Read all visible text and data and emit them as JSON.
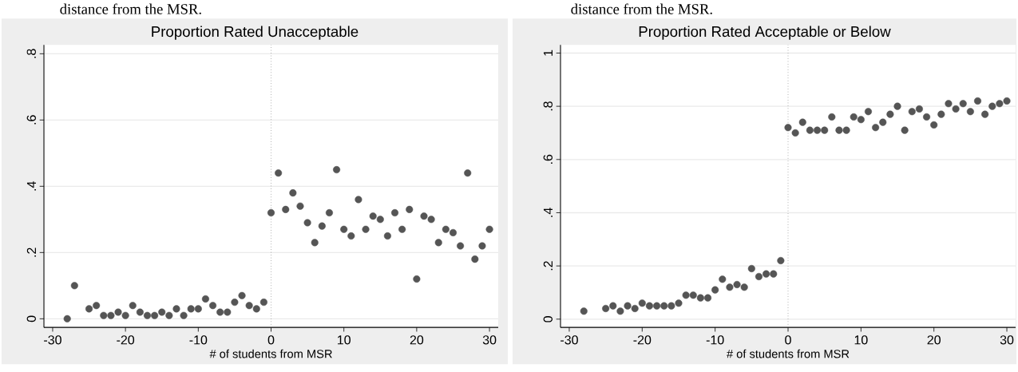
{
  "chart_data": [
    {
      "type": "scatter",
      "title": "Proportion Rated Unacceptable",
      "xlabel": "# of students from MSR",
      "annotations": [
        "distance from the MSR."
      ],
      "color": "#555555",
      "grid": "y",
      "x": [
        -28,
        -27,
        -25,
        -24,
        -23,
        -22,
        -21,
        -20,
        -19,
        -18,
        -17,
        -16,
        -15,
        -14,
        -13,
        -12,
        -11,
        -10,
        -9,
        -8,
        -7,
        -6,
        -5,
        -4,
        -3,
        -2,
        -1,
        0,
        1,
        2,
        3,
        4,
        5,
        6,
        7,
        8,
        9,
        10,
        11,
        12,
        13,
        14,
        15,
        16,
        17,
        18,
        19,
        20,
        21,
        22,
        23,
        24,
        25,
        26,
        27,
        28,
        29,
        30
      ],
      "values": [
        0.0,
        0.1,
        0.03,
        0.04,
        0.01,
        0.01,
        0.02,
        0.01,
        0.04,
        0.02,
        0.01,
        0.01,
        0.02,
        0.01,
        0.03,
        0.01,
        0.03,
        0.03,
        0.06,
        0.04,
        0.02,
        0.02,
        0.05,
        0.07,
        0.04,
        0.03,
        0.05,
        0.32,
        0.44,
        0.33,
        0.38,
        0.34,
        0.29,
        0.23,
        0.28,
        0.32,
        0.45,
        0.27,
        0.25,
        0.36,
        0.27,
        0.31,
        0.3,
        0.25,
        0.32,
        0.27,
        0.33,
        0.12,
        0.31,
        0.3,
        0.23,
        0.27,
        0.26,
        0.22,
        0.44,
        0.18,
        0.22,
        0.27
      ],
      "xlim": [
        -31.2,
        31.2
      ],
      "ylim": [
        -0.026,
        0.827
      ],
      "xticks": [
        -30,
        -20,
        -10,
        0,
        10,
        20,
        30
      ],
      "yticks": [
        0,
        {
          "value": 0.2,
          "label": ".2"
        },
        {
          "value": 0.4,
          "label": ".4"
        },
        {
          "value": 0.6,
          "label": ".6"
        },
        {
          "value": 0.8,
          "label": ".8"
        }
      ],
      "ref_lines": [
        {
          "axis": "x",
          "value": 0,
          "line_style": "dotted",
          "color": "#888888"
        }
      ]
    },
    {
      "type": "scatter",
      "title": "Proportion Rated Acceptable or Below",
      "xlabel": "# of students from MSR",
      "annotations": [
        "distance from the MSR."
      ],
      "color": "#555555",
      "grid": "y",
      "x": [
        -28,
        -25,
        -24,
        -23,
        -22,
        -21,
        -20,
        -19,
        -18,
        -17,
        -16,
        -15,
        -14,
        -13,
        -12,
        -11,
        -10,
        -9,
        -8,
        -7,
        -6,
        -5,
        -4,
        -3,
        -2,
        -1,
        0,
        1,
        2,
        3,
        4,
        5,
        6,
        7,
        8,
        9,
        10,
        11,
        12,
        13,
        14,
        15,
        16,
        17,
        18,
        19,
        20,
        21,
        22,
        23,
        24,
        25,
        26,
        27,
        28,
        29,
        30
      ],
      "values": [
        0.03,
        0.04,
        0.05,
        0.03,
        0.05,
        0.04,
        0.06,
        0.05,
        0.05,
        0.05,
        0.05,
        0.06,
        0.09,
        0.09,
        0.08,
        0.08,
        0.11,
        0.15,
        0.12,
        0.13,
        0.12,
        0.19,
        0.16,
        0.17,
        0.17,
        0.22,
        0.72,
        0.7,
        0.74,
        0.71,
        0.71,
        0.71,
        0.76,
        0.71,
        0.71,
        0.76,
        0.75,
        0.78,
        0.72,
        0.74,
        0.77,
        0.8,
        0.71,
        0.78,
        0.79,
        0.76,
        0.73,
        0.77,
        0.81,
        0.79,
        0.81,
        0.78,
        0.82,
        0.77,
        0.8,
        0.81,
        0.82
      ],
      "xlim": [
        -31.2,
        31.2
      ],
      "ylim": [
        -0.031,
        1.031
      ],
      "xticks": [
        -30,
        -20,
        -10,
        0,
        10,
        20,
        30
      ],
      "yticks": [
        0,
        {
          "value": 0.2,
          "label": ".2"
        },
        {
          "value": 0.4,
          "label": ".4"
        },
        {
          "value": 0.6,
          "label": ".6"
        },
        {
          "value": 0.8,
          "label": ".8"
        },
        1
      ],
      "ref_lines": [
        {
          "axis": "x",
          "value": 0,
          "line_style": "dotted",
          "color": "#888888"
        }
      ]
    }
  ]
}
